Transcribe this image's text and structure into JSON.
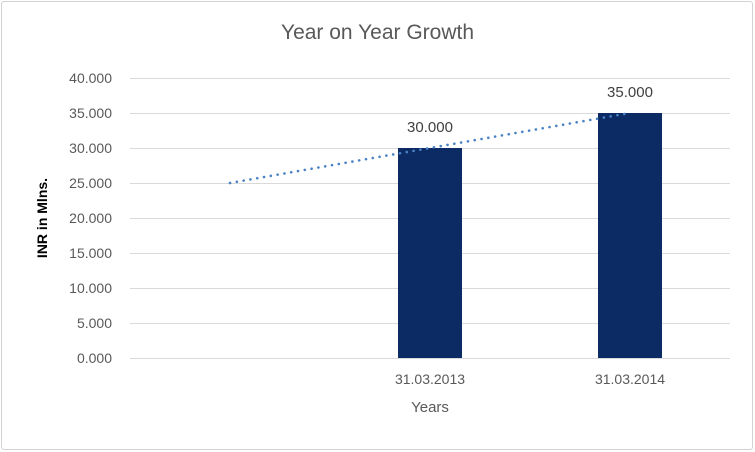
{
  "chart_data": {
    "type": "bar",
    "title": "Year on Year Growth",
    "xlabel": "Years",
    "ylabel": "INR in Mlns.",
    "categories": [
      "31.03.2013",
      "31.03.2014"
    ],
    "values": [
      30,
      35
    ],
    "data_labels": [
      "30.000",
      "35.000"
    ],
    "y_ticks": [
      "40.000",
      "35.000",
      "30.000",
      "25.000",
      "20.000",
      "15.000",
      "10.000",
      "5.000",
      "0.000"
    ],
    "ylim": [
      0,
      40
    ],
    "grid": true,
    "legend": "none",
    "num_slots": 3,
    "bar_slots": [
      1,
      2
    ],
    "trendline": {
      "type": "linear-dotted",
      "start_slot": 0,
      "start_value": 25,
      "end_slot": 2,
      "end_value": 35
    },
    "colors": {
      "bar": "#0c2a63",
      "trendline": "#4a82c6",
      "gridline": "#d9d9d9",
      "frame_border": "#d2d2d2",
      "text_gray": "#595959",
      "data_label": "#404040",
      "axis_title": "#000000"
    }
  }
}
